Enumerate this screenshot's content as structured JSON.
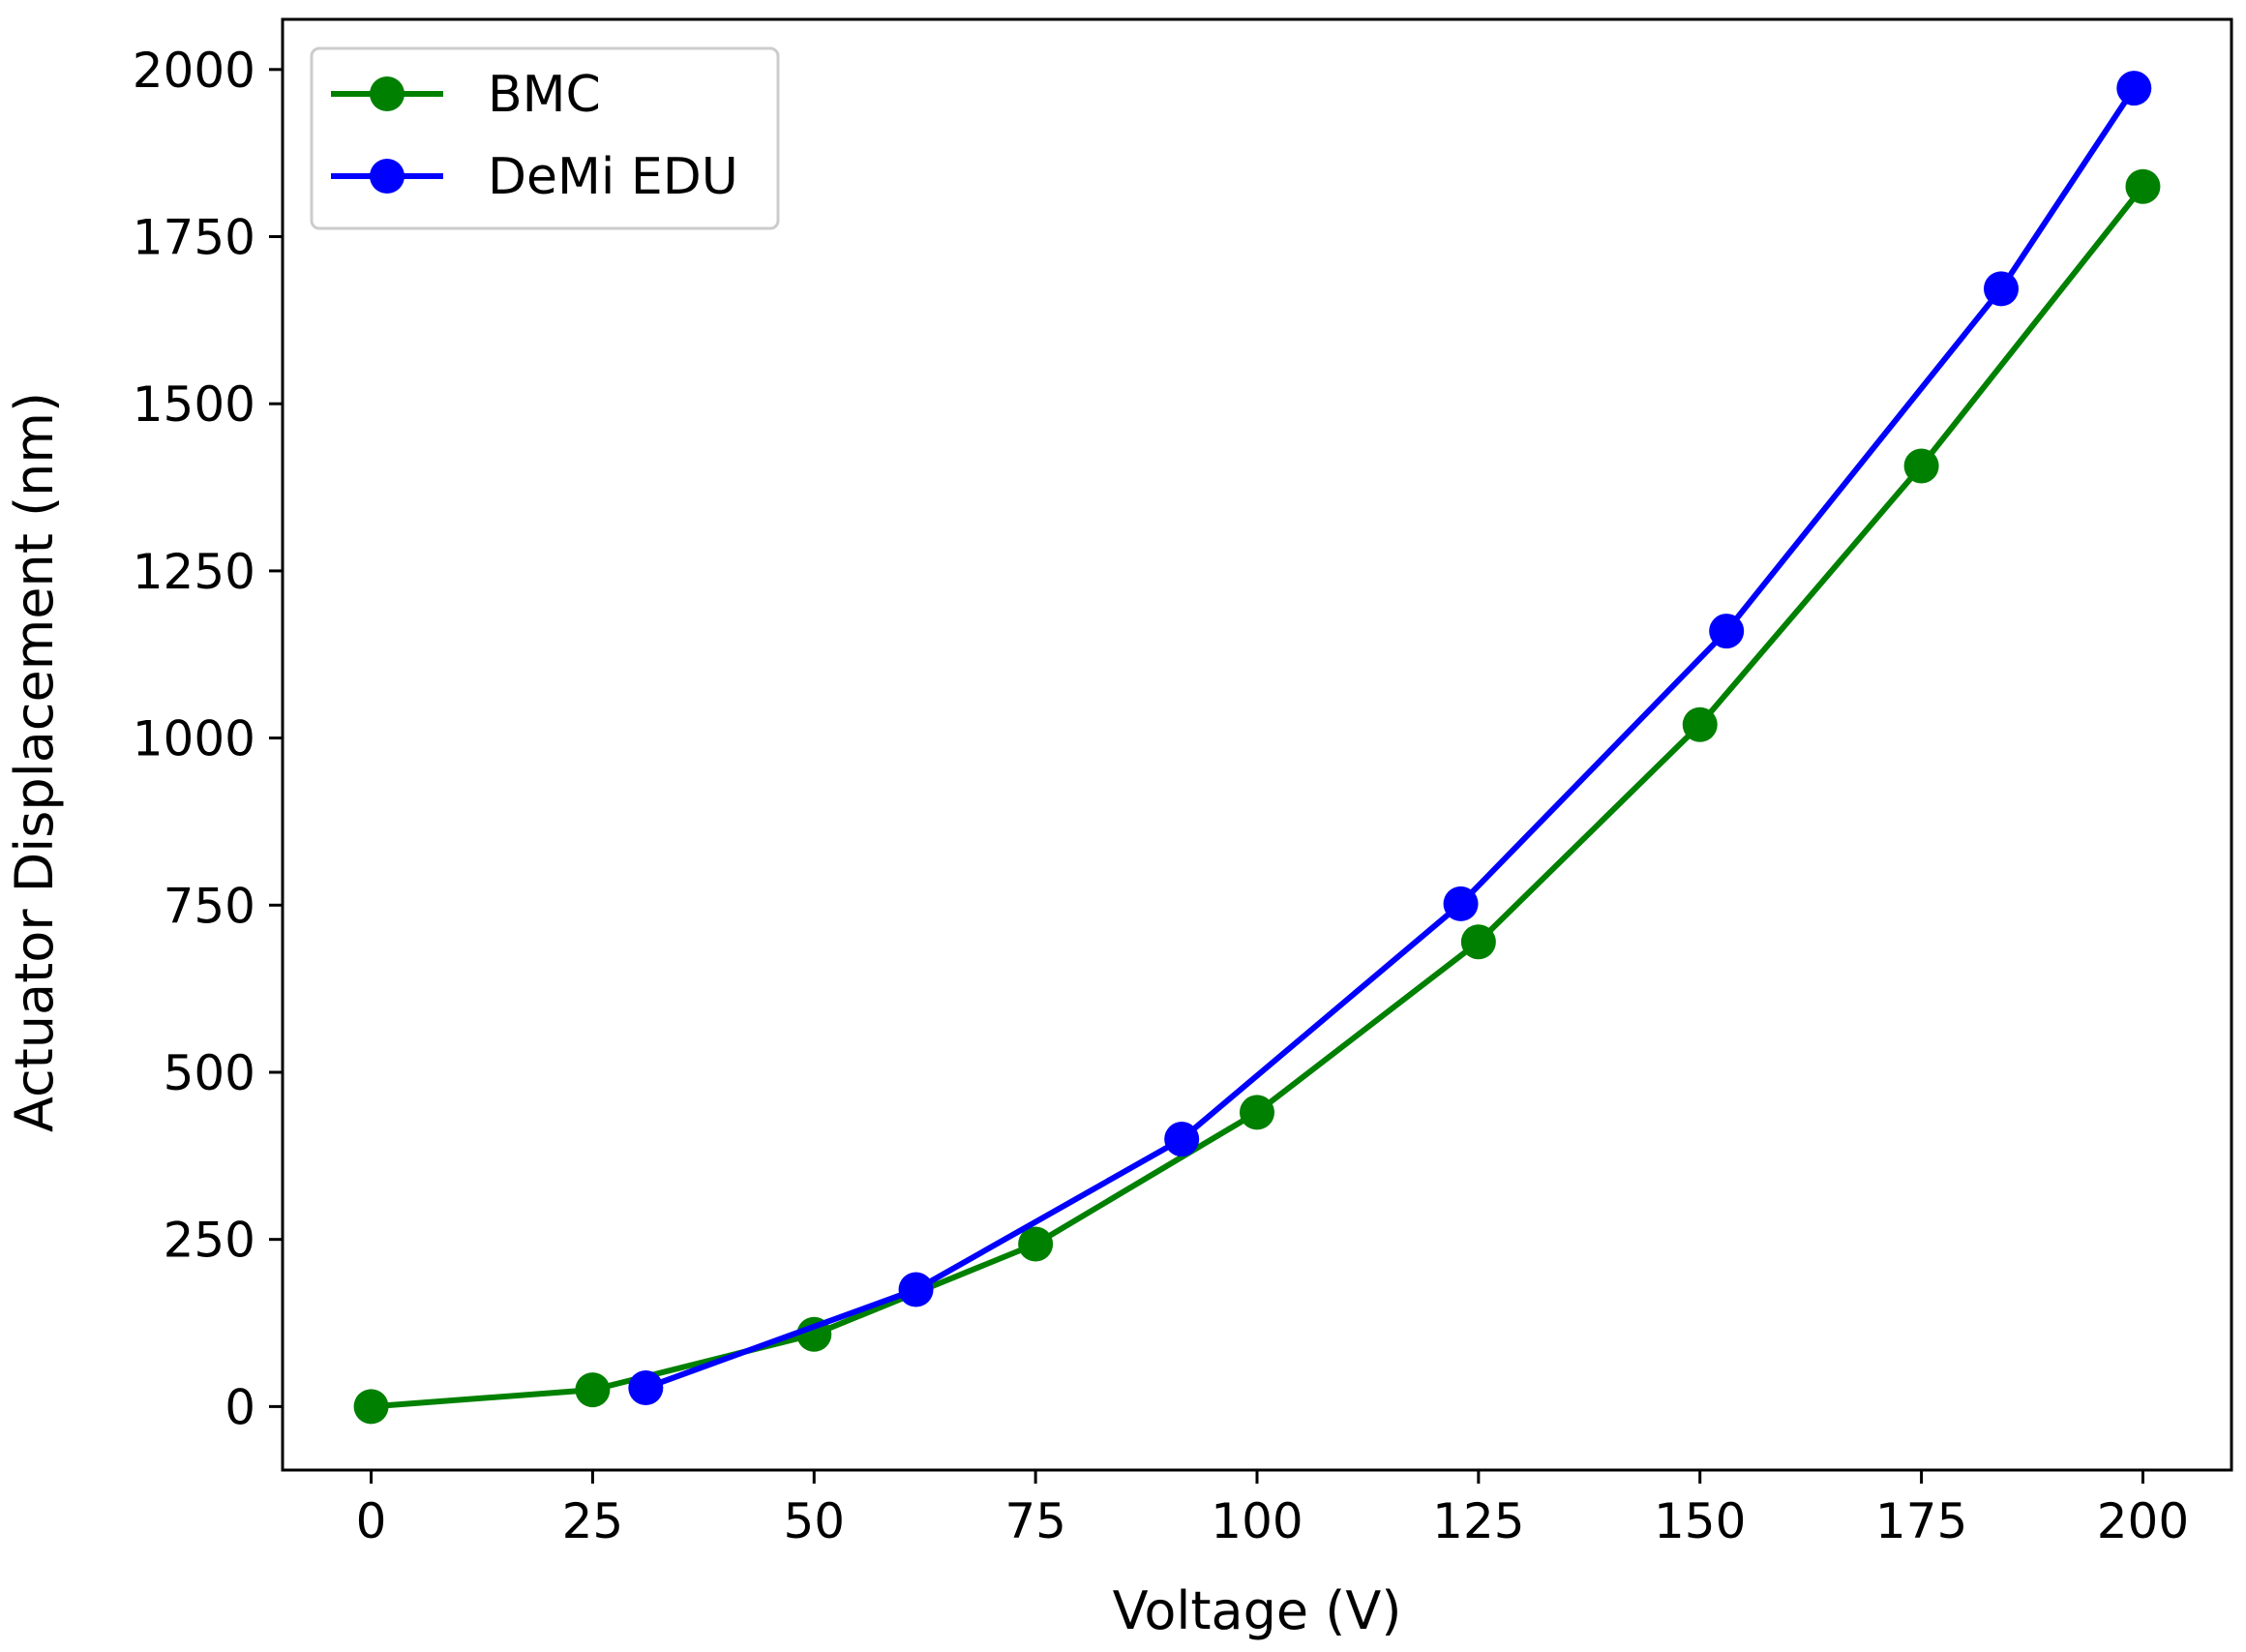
{
  "chart_data": {
    "type": "line",
    "title": "",
    "xlabel": "Voltage (V)",
    "ylabel": "Actuator Displacement (nm)",
    "xlim": [
      -10,
      210
    ],
    "ylim": [
      -95,
      2075
    ],
    "x_ticks": [
      0,
      25,
      50,
      75,
      100,
      125,
      150,
      175,
      200
    ],
    "y_ticks": [
      0,
      250,
      500,
      750,
      1000,
      1250,
      1500,
      1750,
      2000
    ],
    "grid": false,
    "legend_position": "top-left",
    "series": [
      {
        "name": "BMC",
        "color": "#008000",
        "x": [
          0,
          25,
          50,
          75,
          100,
          125,
          150,
          175,
          200
        ],
        "y": [
          0,
          25,
          108,
          243,
          440,
          695,
          1020,
          1407,
          1825
        ]
      },
      {
        "name": "DeMi EDU",
        "color": "#0000ff",
        "x": [
          31,
          61.5,
          91.5,
          123,
          153,
          184,
          199
        ],
        "y": [
          28,
          175,
          400,
          752,
          1160,
          1672,
          1972
        ]
      }
    ]
  }
}
